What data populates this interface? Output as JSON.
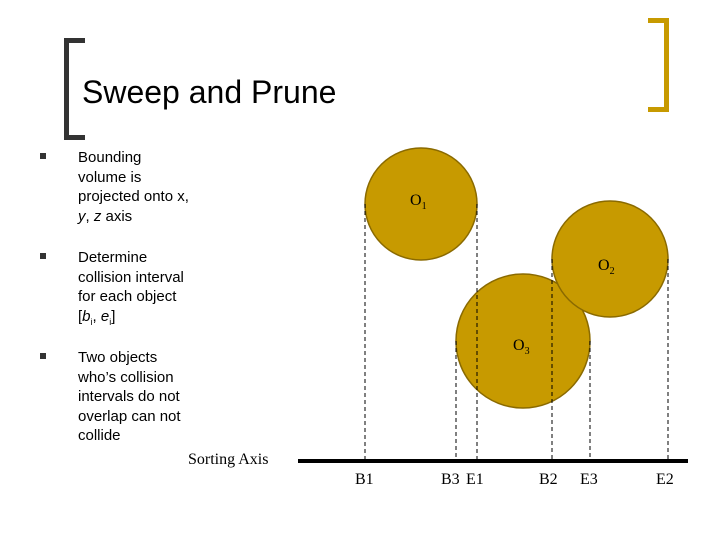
{
  "title": "Sweep and Prune",
  "bullets": {
    "b1": {
      "line1": "Bounding",
      "line2": "volume is",
      "line3": "projected onto x,",
      "line4a": "y",
      "line4b": ", ",
      "line4c": "z",
      "line4d": " axis"
    },
    "b2": {
      "line1": "Determine",
      "line2": "collision interval",
      "line3": "for each object",
      "open": "[",
      "b": "b",
      "bsub": "i",
      "sep": ", ",
      "e": "e",
      "esub": "i",
      "close": "]"
    },
    "b3": {
      "line1": "Two objects",
      "line2": "who’s collision",
      "line3": "intervals do not",
      "line4": "overlap can not",
      "line5": "collide"
    }
  },
  "sorting_axis_label": "Sorting Axis",
  "objects": [
    {
      "name": "O",
      "sub": "1"
    },
    {
      "name": "O",
      "sub": "2"
    },
    {
      "name": "O",
      "sub": "3"
    }
  ],
  "axis_labels": [
    "B1",
    "B3",
    "E1",
    "B2",
    "E3",
    "E2"
  ],
  "colors": {
    "circle_fill": "#c79a00",
    "circle_stroke": "#8a6a00",
    "title_left_bracket": "#333333",
    "title_right_bracket": "#c79a00"
  }
}
